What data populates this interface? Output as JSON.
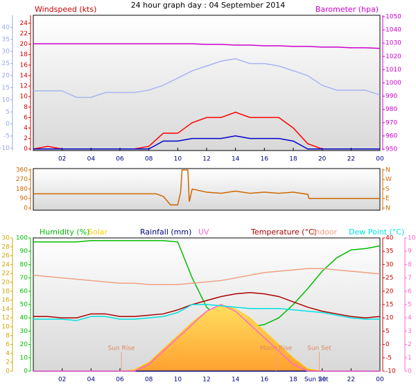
{
  "chart_data": [
    {
      "type": "line",
      "title": "24 hour graph day : 04 September 2014",
      "x": [
        0,
        1,
        2,
        3,
        4,
        5,
        6,
        7,
        8,
        9,
        10,
        11,
        12,
        13,
        14,
        15,
        16,
        17,
        18,
        19,
        20,
        21,
        22,
        23,
        24
      ],
      "xlim": [
        0,
        24
      ],
      "xticks": [
        {
          "value": 2,
          "label": "02"
        },
        {
          "value": 4,
          "label": "04"
        },
        {
          "value": 6,
          "label": "06"
        },
        {
          "value": 8,
          "label": "08"
        },
        10,
        12,
        14,
        16,
        18,
        20,
        22,
        {
          "value": 24,
          "label": "00"
        }
      ],
      "axes": [
        {
          "label": "Windspeed (kts)",
          "side": "left",
          "color": "#cc0000",
          "lim": [
            -0.3,
            25.5
          ],
          "ticks": [
            0,
            2,
            4,
            6,
            8,
            10,
            12,
            14,
            16,
            18,
            20,
            22,
            24
          ]
        },
        {
          "side": "left",
          "color": "#9aa8e8",
          "lim": [
            -11,
            45
          ],
          "ticks": [
            40,
            35,
            30,
            25,
            20,
            15,
            10,
            5,
            0,
            -5,
            -10
          ]
        },
        {
          "label": "Barometer (hpa)",
          "side": "right",
          "color": "#cc00cc",
          "lim": [
            949,
            1051
          ],
          "ticks": [
            950,
            960,
            970,
            980,
            990,
            1000,
            1010,
            1020,
            1030,
            1040,
            1050
          ]
        }
      ],
      "series": [
        {
          "axis": 1,
          "color": "#a8b4f0",
          "values": [
            13.7,
            13.7,
            13.7,
            11,
            11,
            13,
            13,
            13,
            14,
            16,
            19,
            22,
            24,
            26,
            27,
            25,
            25,
            24,
            22,
            20,
            16,
            14,
            14,
            14,
            12
          ]
        },
        {
          "axis": 2,
          "color": "#cc00cc",
          "values": [
            1029.5,
            1029.5,
            1029.5,
            1029.5,
            1029.5,
            1029.5,
            1029.5,
            1029.5,
            1029.5,
            1029.5,
            1029.5,
            1029.5,
            1029,
            1029,
            1028.5,
            1028.5,
            1028,
            1028,
            1027.5,
            1027.5,
            1027,
            1027,
            1026.5,
            1026.5,
            1026
          ]
        },
        {
          "axis": 0,
          "color": "#ff0000",
          "values": [
            0,
            0.5,
            0,
            0,
            0,
            0,
            0,
            0,
            0.5,
            3,
            3,
            5,
            6,
            6,
            7,
            6,
            6,
            6,
            4,
            1,
            0,
            0,
            0,
            0,
            0
          ]
        },
        {
          "axis": 0,
          "color": "#0000cc",
          "values": [
            0,
            0,
            0,
            0,
            0,
            0,
            0,
            0,
            0,
            1.5,
            1.5,
            2,
            2,
            2,
            2.5,
            2,
            2,
            2,
            1.5,
            0,
            0,
            0,
            0,
            0,
            0
          ]
        }
      ]
    },
    {
      "type": "line",
      "x": [
        0,
        8.5,
        9,
        9.5,
        10,
        10.2,
        10.3,
        10.7,
        10.8,
        11,
        12,
        13,
        14,
        15,
        16,
        17,
        18,
        19,
        19.1,
        24
      ],
      "xlim": [
        0,
        24
      ],
      "xticks": [],
      "axes": [
        {
          "side": "left",
          "color": "#cc6600",
          "lim": [
            -20,
            373
          ],
          "ticks": [
            0,
            90,
            180,
            270,
            360
          ]
        },
        {
          "side": "right",
          "color": "#cc6600",
          "lim": [
            -20,
            373
          ],
          "ticks": [
            {
              "value": 360,
              "label": "N"
            },
            {
              "value": 270,
              "label": "W"
            },
            {
              "value": 180,
              "label": "S"
            },
            {
              "value": 90,
              "label": "E"
            },
            {
              "value": 0,
              "label": "N"
            }
          ]
        }
      ],
      "series": [
        {
          "axis": 0,
          "color": "#cc6600",
          "values": [
            135,
            135,
            110,
            30,
            30,
            150,
            360,
            360,
            60,
            180,
            150,
            140,
            160,
            140,
            150,
            140,
            150,
            130,
            90,
            90
          ]
        }
      ]
    },
    {
      "type": "line",
      "x": [
        0,
        1,
        2,
        3,
        4,
        5,
        6,
        7,
        8,
        9,
        10,
        11,
        12,
        13,
        14,
        15,
        16,
        17,
        18,
        19,
        20,
        21,
        22,
        23,
        24
      ],
      "xlim": [
        0,
        24
      ],
      "xticks": [
        {
          "value": 2,
          "label": "02"
        },
        {
          "value": 4,
          "label": "04"
        },
        {
          "value": 6,
          "label": "06"
        },
        {
          "value": 8,
          "label": "08"
        },
        10,
        12,
        14,
        16,
        18,
        20,
        22,
        {
          "value": 24,
          "label": "00"
        }
      ],
      "axes": [
        {
          "side": "left",
          "color": "#00bb00",
          "lim": [
            0,
            100
          ],
          "ticks": [
            0,
            10,
            20,
            30,
            40,
            50,
            60,
            70,
            80,
            90,
            100
          ]
        },
        {
          "side": "left",
          "color": "#ccaa00",
          "lim": [
            0,
            30
          ],
          "ticks": [
            0,
            2,
            4,
            6,
            8,
            10,
            12,
            14,
            16,
            18,
            20,
            22,
            24,
            26,
            28,
            30
          ]
        },
        {
          "side": "right",
          "color": "#cc0000",
          "lim": [
            -10,
            40
          ],
          "ticks": [
            -10,
            -5,
            0,
            5,
            10,
            15,
            20,
            25,
            30,
            35,
            40
          ]
        },
        {
          "side": "right",
          "color": "#ff66cc",
          "lim": [
            0,
            10
          ],
          "ticks": [
            0,
            1,
            2,
            3,
            4,
            5,
            6,
            7,
            8,
            9,
            10
          ]
        }
      ],
      "series": [
        {
          "name": "Humidity (%)",
          "axis": 0,
          "color": "#00bb00",
          "values": [
            97,
            97,
            97,
            97,
            98,
            98,
            98,
            98,
            98,
            98,
            97,
            70,
            48,
            38,
            35,
            33,
            35,
            40,
            50,
            62,
            75,
            85,
            91,
            92,
            94
          ]
        },
        {
          "name": "Solar",
          "axis": 1,
          "color": "#ffcc00",
          "fill": true,
          "values": [
            0,
            0,
            0,
            0,
            0,
            0,
            0,
            0.3,
            2,
            5,
            8,
            11,
            13.5,
            15,
            14,
            12,
            9,
            6,
            3,
            0.5,
            0,
            0,
            0,
            0,
            0
          ]
        },
        {
          "name": "Rainfall (mm)",
          "axis": 1,
          "color": "#000080",
          "values": [
            0,
            0,
            0,
            0,
            0,
            0,
            0,
            0,
            0,
            0,
            0,
            0,
            0,
            0,
            0,
            0,
            0,
            0,
            0,
            0,
            0,
            0,
            0,
            0,
            0
          ]
        },
        {
          "name": "UV",
          "axis": 3,
          "color": "#ff66cc",
          "values": [
            0,
            0,
            0,
            0,
            0,
            0,
            0,
            0,
            0.5,
            1.5,
            2.5,
            3.5,
            4.5,
            5,
            4.5,
            3.5,
            2.5,
            1.5,
            0.5,
            0,
            0,
            0,
            0,
            0,
            0
          ]
        },
        {
          "name": "Temperature (°C)",
          "axis": 2,
          "color": "#aa0000",
          "values": [
            10.5,
            10.5,
            10,
            10,
            11.5,
            11.5,
            10.5,
            10.5,
            11,
            11.5,
            13,
            15,
            16.5,
            18,
            19,
            19.5,
            19,
            18,
            16,
            14,
            12.5,
            11.5,
            10.5,
            10,
            10.5
          ]
        },
        {
          "name": "Indoor",
          "axis": 2,
          "color": "#f0a080",
          "values": [
            26,
            25.5,
            25,
            24.5,
            24,
            23.5,
            23,
            23,
            22.5,
            22.5,
            22.5,
            23,
            23.5,
            24,
            25,
            26,
            27,
            27.5,
            28,
            28.5,
            28.5,
            28,
            27.5,
            27,
            26.5
          ]
        },
        {
          "name": "Dew Point (°C)",
          "axis": 2,
          "color": "#00e0e0",
          "values": [
            9.5,
            9.5,
            9.5,
            9,
            10.5,
            10.5,
            9.5,
            9.5,
            10,
            10.5,
            12,
            15,
            15,
            14.5,
            14,
            13.5,
            13.5,
            13.5,
            13,
            12.5,
            12,
            11,
            10,
            9.5,
            9.5
          ]
        }
      ],
      "annotations": [
        {
          "text": "Sun Rise",
          "x": 6.1,
          "place": "plot"
        },
        {
          "text": "Moon Rise",
          "x": 16.8,
          "place": "plot"
        },
        {
          "text": "Sun Set",
          "x": 19.8,
          "place": "plot"
        },
        {
          "text": "Sun Set",
          "x": 19.6,
          "place": "axis"
        }
      ]
    }
  ]
}
